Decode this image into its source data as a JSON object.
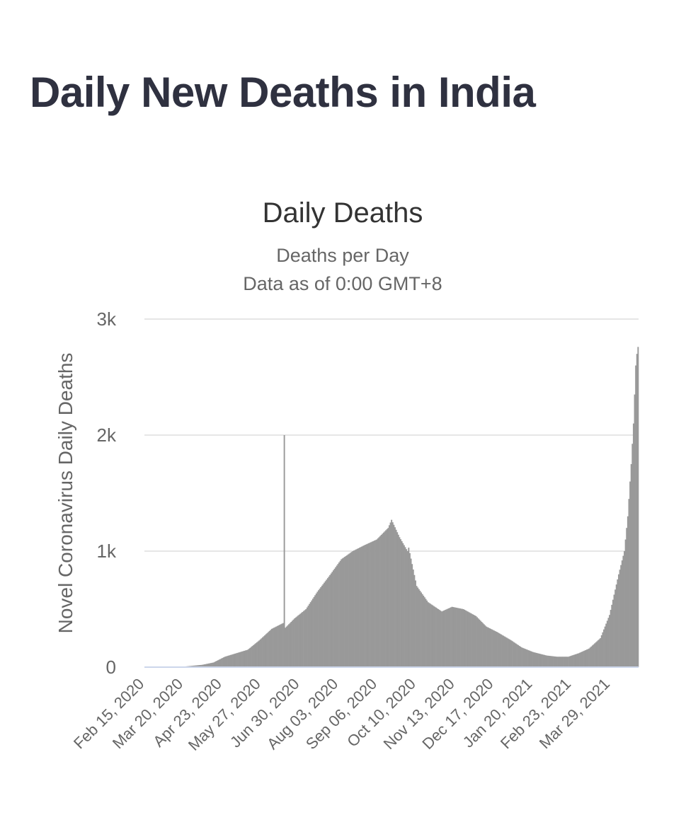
{
  "page": {
    "title": "Daily New Deaths in India"
  },
  "colors": {
    "bar": "#999999",
    "grid": "#e6e6e6",
    "baseline": "#ccd6eb",
    "title_text": "#2f3140"
  },
  "chart_data": {
    "type": "bar",
    "title": "Daily Deaths",
    "subtitle_lines": [
      "Deaths per Day",
      "Data as of 0:00 GMT+8"
    ],
    "ylabel": "Novel Coronavirus Daily Deaths",
    "xlabel": "",
    "ylim": [
      0,
      3000
    ],
    "yticks": [
      0,
      1000,
      2000,
      3000
    ],
    "ytick_labels": [
      "0",
      "1k",
      "2k",
      "3k"
    ],
    "xaxis_start": "2020-02-15",
    "xaxis_end": "2021-04-22",
    "xtick_dates": [
      "2020-02-15",
      "2020-03-20",
      "2020-04-23",
      "2020-05-27",
      "2020-06-30",
      "2020-08-03",
      "2020-09-06",
      "2020-10-10",
      "2020-11-13",
      "2020-12-17",
      "2021-01-20",
      "2021-02-23",
      "2021-03-29"
    ],
    "xtick_labels": [
      "Feb 15, 2020",
      "Mar 20, 2020",
      "Apr 23, 2020",
      "May 27, 2020",
      "Jun 30, 2020",
      "Aug 03, 2020",
      "Sep 06, 2020",
      "Oct 10, 2020",
      "Nov 13, 2020",
      "Dec 17, 2020",
      "Jan 20, 2021",
      "Feb 23, 2021",
      "Mar 29, 2021"
    ],
    "grid": true,
    "legend": "none",
    "series": [
      {
        "x": [
          "2020-02-15",
          "2020-03-15",
          "2020-04-05",
          "2020-04-15",
          "2020-04-25",
          "2020-05-05",
          "2020-05-15",
          "2020-05-25",
          "2020-06-05",
          "2020-06-15",
          "2020-06-16",
          "2020-06-17",
          "2020-06-25",
          "2020-07-05",
          "2020-07-15",
          "2020-07-25",
          "2020-08-05",
          "2020-08-15",
          "2020-08-25",
          "2020-09-05",
          "2020-09-15",
          "2020-09-18",
          "2020-09-25",
          "2020-10-02",
          "2020-10-03",
          "2020-10-10",
          "2020-10-20",
          "2020-11-01",
          "2020-11-10",
          "2020-11-20",
          "2020-12-01",
          "2020-12-10",
          "2020-12-20",
          "2021-01-01",
          "2021-01-10",
          "2021-01-20",
          "2021-02-01",
          "2021-02-10",
          "2021-02-20",
          "2021-03-01",
          "2021-03-10",
          "2021-03-20",
          "2021-03-28",
          "2021-04-05",
          "2021-04-10",
          "2021-04-13",
          "2021-04-16",
          "2021-04-18",
          "2021-04-20",
          "2021-04-21",
          "2021-04-22"
        ],
        "values": [
          0,
          0,
          20,
          40,
          90,
          120,
          150,
          230,
          330,
          380,
          2000,
          340,
          420,
          500,
          650,
          780,
          930,
          1000,
          1050,
          1100,
          1200,
          1270,
          1120,
          1000,
          1030,
          700,
          560,
          480,
          520,
          500,
          440,
          350,
          300,
          230,
          170,
          130,
          100,
          90,
          90,
          120,
          160,
          250,
          450,
          800,
          1000,
          1300,
          1750,
          2100,
          2600,
          2700,
          2760
        ]
      }
    ]
  }
}
